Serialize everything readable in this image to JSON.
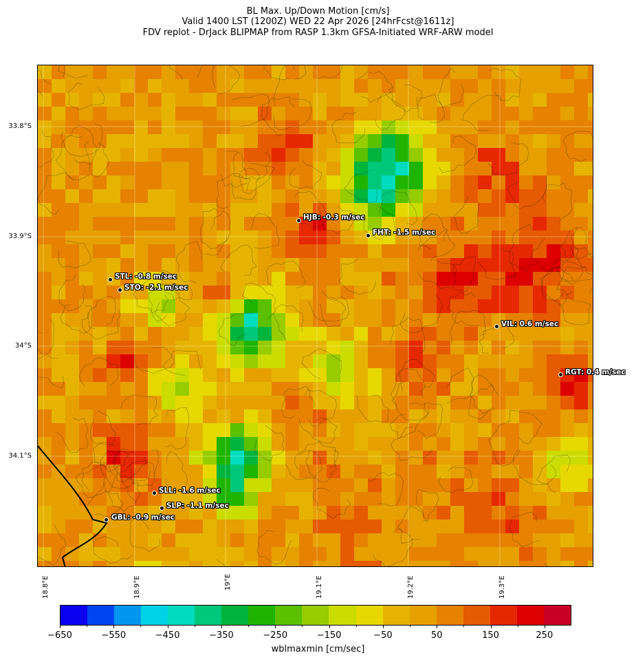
{
  "header": {
    "line1": "BL Max. Up/Down Motion [cm/s]",
    "line2": "Valid 1400 LST (1200Z) WED 22 Apr 2026 [24hrFcst@1611z]",
    "line3": "FDV replot - DrJack BLIPMAP from RASP 1.3km GFSA-Initiated WRF-ARW model"
  },
  "map": {
    "lat_labels": [
      "33.8°S",
      "33.9°S",
      "34°S",
      "34.1°S"
    ],
    "lon_labels": [
      "18.8°E",
      "18.9°E",
      "19°E",
      "19.1°E",
      "19.2°E",
      "19.3°E"
    ],
    "stations": [
      {
        "code": "HJB",
        "label": "HJB: -0.3 m/sec"
      },
      {
        "code": "FHT",
        "label": "FHT: -1.5 m/sec"
      },
      {
        "code": "STL",
        "label": "STL: -0.8 m/sec"
      },
      {
        "code": "STO",
        "label": "STO: -2.1 m/sec"
      },
      {
        "code": "VIL",
        "label": "VIL: 0.6 m/sec"
      },
      {
        "code": "RGT",
        "label": "RGT: 0.4 m/sec"
      },
      {
        "code": "SLL",
        "label": "SLL: -1.6 m/sec"
      },
      {
        "code": "SLP",
        "label": "SLP: -1.1 m/sec"
      },
      {
        "code": "GBL",
        "label": "GBL: -0.9 m/sec"
      }
    ]
  },
  "colorbar": {
    "title": "wblmaxmin [cm/sec]",
    "tick_labels": [
      "−650",
      "−550",
      "−450",
      "−350",
      "−250",
      "−150",
      "−50",
      "50",
      "150",
      "250"
    ],
    "colors": [
      "#0a00f0",
      "#0046f0",
      "#0096f0",
      "#00d2e6",
      "#00dcbe",
      "#00c87a",
      "#00b43c",
      "#1eb400",
      "#5ac000",
      "#96cc00",
      "#cadc00",
      "#e6d800",
      "#e6b400",
      "#e6a000",
      "#e68200",
      "#e65a00",
      "#e62800",
      "#dc0000",
      "#c80028"
    ]
  }
}
